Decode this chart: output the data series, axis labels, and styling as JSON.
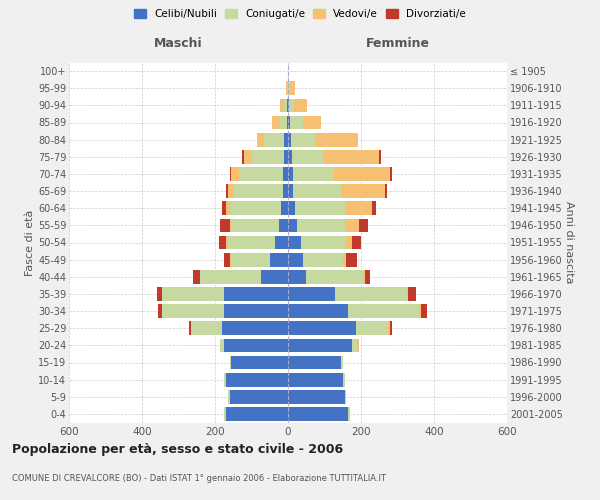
{
  "age_groups": [
    "0-4",
    "5-9",
    "10-14",
    "15-19",
    "20-24",
    "25-29",
    "30-34",
    "35-39",
    "40-44",
    "45-49",
    "50-54",
    "55-59",
    "60-64",
    "65-69",
    "70-74",
    "75-79",
    "80-84",
    "85-89",
    "90-94",
    "95-99",
    "100+"
  ],
  "birth_years": [
    "2001-2005",
    "1996-2000",
    "1991-1995",
    "1986-1990",
    "1981-1985",
    "1976-1980",
    "1971-1975",
    "1966-1970",
    "1961-1965",
    "1956-1960",
    "1951-1955",
    "1946-1950",
    "1941-1945",
    "1936-1940",
    "1931-1935",
    "1926-1930",
    "1921-1925",
    "1916-1920",
    "1911-1915",
    "1906-1910",
    "≤ 1905"
  ],
  "maschi": {
    "celibi": [
      170,
      160,
      170,
      155,
      175,
      180,
      175,
      175,
      75,
      50,
      35,
      25,
      20,
      15,
      15,
      10,
      10,
      3,
      2,
      0,
      0
    ],
    "coniugati": [
      5,
      5,
      5,
      5,
      10,
      85,
      170,
      170,
      165,
      105,
      130,
      130,
      140,
      135,
      120,
      90,
      55,
      20,
      10,
      3,
      0
    ],
    "vedovi": [
      0,
      0,
      0,
      0,
      0,
      0,
      0,
      0,
      0,
      5,
      5,
      5,
      10,
      15,
      20,
      20,
      20,
      20,
      10,
      2,
      0
    ],
    "divorziati": [
      0,
      0,
      0,
      0,
      0,
      5,
      10,
      15,
      20,
      15,
      20,
      25,
      10,
      5,
      5,
      5,
      0,
      0,
      0,
      0,
      0
    ]
  },
  "femmine": {
    "nubili": [
      165,
      155,
      150,
      145,
      175,
      185,
      165,
      130,
      50,
      40,
      35,
      25,
      20,
      15,
      15,
      10,
      8,
      5,
      2,
      0,
      0
    ],
    "coniugate": [
      5,
      5,
      5,
      5,
      15,
      90,
      195,
      195,
      155,
      110,
      125,
      130,
      135,
      130,
      110,
      85,
      65,
      35,
      15,
      5,
      0
    ],
    "vedove": [
      0,
      0,
      0,
      0,
      5,
      5,
      5,
      5,
      5,
      10,
      15,
      40,
      75,
      120,
      155,
      155,
      120,
      50,
      35,
      15,
      0
    ],
    "divorziate": [
      0,
      0,
      0,
      0,
      0,
      5,
      15,
      20,
      15,
      30,
      25,
      25,
      10,
      5,
      5,
      5,
      0,
      0,
      0,
      0,
      0
    ]
  },
  "colors": {
    "celibi_nubili": "#4472c4",
    "coniugati": "#c5d9a0",
    "vedovi": "#f5c072",
    "divorziati": "#c0392b"
  },
  "xlim": 600,
  "title": "Popolazione per età, sesso e stato civile - 2006",
  "subtitle": "COMUNE DI CREVALCORE (BO) - Dati ISTAT 1° gennaio 2006 - Elaborazione TUTTITALIA.IT",
  "ylabel_left": "Fasce di età",
  "ylabel_right": "Anni di nascita",
  "xlabel_left": "Maschi",
  "xlabel_right": "Femmine",
  "bg_color": "#f0f0f0",
  "plot_bg": "#ffffff"
}
